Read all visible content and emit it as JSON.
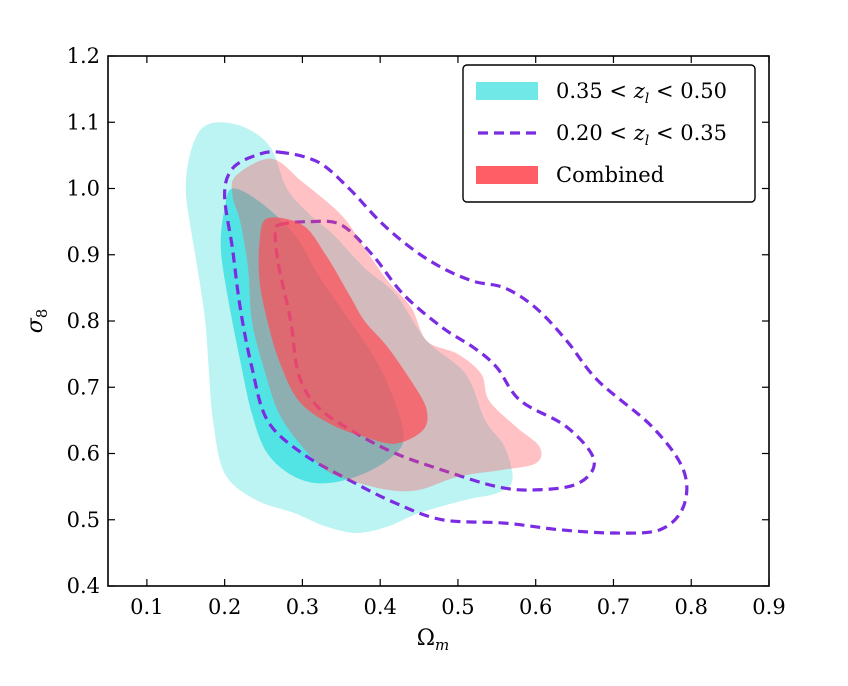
{
  "chart_data": {
    "type": "contour",
    "xlabel": "Ω",
    "xlabel_sub": "m",
    "ylabel": "σ",
    "ylabel_sub": "8",
    "xlim": [
      0.05,
      0.9
    ],
    "ylim": [
      0.4,
      1.2
    ],
    "xticks": [
      "0.1",
      "0.2",
      "0.3",
      "0.4",
      "0.5",
      "0.6",
      "0.7",
      "0.8",
      "0.9"
    ],
    "yticks": [
      "0.4",
      "0.5",
      "0.6",
      "0.7",
      "0.8",
      "0.9",
      "1.0",
      "1.1",
      "1.2"
    ],
    "legend_position": "top-right",
    "legend": [
      {
        "label_parts": [
          "0.35 < ",
          "z",
          "l",
          " < 0.50"
        ],
        "style": "filled",
        "color": "#40E0E0"
      },
      {
        "label_parts": [
          "0.20 < ",
          "z",
          "l",
          " < 0.35"
        ],
        "style": "dashed",
        "color": "#7B2BE2"
      },
      {
        "label_parts": [
          "Combined"
        ],
        "style": "filled",
        "color": "#FF4C55"
      }
    ],
    "series": [
      {
        "name": "0.35 < z_l < 0.50",
        "color": "#40E0E0",
        "style": "filled",
        "levels": [
          {
            "level": "outer",
            "opacity": 0.35,
            "points": [
              [
                0.195,
                1.1
              ],
              [
                0.23,
                1.09
              ],
              [
                0.26,
                1.06
              ],
              [
                0.28,
                1.0
              ],
              [
                0.31,
                0.96
              ],
              [
                0.34,
                0.93
              ],
              [
                0.38,
                0.88
              ],
              [
                0.42,
                0.84
              ],
              [
                0.46,
                0.77
              ],
              [
                0.51,
                0.72
              ],
              [
                0.535,
                0.65
              ],
              [
                0.56,
                0.61
              ],
              [
                0.57,
                0.56
              ],
              [
                0.55,
                0.54
              ],
              [
                0.51,
                0.53
              ],
              [
                0.45,
                0.51
              ],
              [
                0.41,
                0.49
              ],
              [
                0.37,
                0.48
              ],
              [
                0.33,
                0.49
              ],
              [
                0.29,
                0.51
              ],
              [
                0.24,
                0.53
              ],
              [
                0.2,
                0.57
              ],
              [
                0.185,
                0.65
              ],
              [
                0.18,
                0.72
              ],
              [
                0.175,
                0.8
              ],
              [
                0.165,
                0.88
              ],
              [
                0.155,
                0.95
              ],
              [
                0.15,
                1.0
              ],
              [
                0.155,
                1.05
              ],
              [
                0.17,
                1.09
              ]
            ]
          },
          {
            "level": "inner",
            "opacity": 0.85,
            "points": [
              [
                0.21,
                1.0
              ],
              [
                0.245,
                0.98
              ],
              [
                0.29,
                0.93
              ],
              [
                0.32,
                0.87
              ],
              [
                0.355,
                0.81
              ],
              [
                0.39,
                0.75
              ],
              [
                0.415,
                0.69
              ],
              [
                0.43,
                0.63
              ],
              [
                0.42,
                0.6
              ],
              [
                0.38,
                0.57
              ],
              [
                0.33,
                0.555
              ],
              [
                0.29,
                0.565
              ],
              [
                0.255,
                0.6
              ],
              [
                0.235,
                0.66
              ],
              [
                0.22,
                0.74
              ],
              [
                0.205,
                0.83
              ],
              [
                0.195,
                0.91
              ],
              [
                0.2,
                0.97
              ]
            ]
          }
        ]
      },
      {
        "name": "0.20 < z_l < 0.35",
        "color": "#7B2BE2",
        "style": "dashed",
        "levels": [
          {
            "level": "outer",
            "points": [
              [
                0.27,
                1.055
              ],
              [
                0.32,
                1.04
              ],
              [
                0.36,
                1.0
              ],
              [
                0.4,
                0.95
              ],
              [
                0.44,
                0.91
              ],
              [
                0.48,
                0.88
              ],
              [
                0.52,
                0.86
              ],
              [
                0.56,
                0.85
              ],
              [
                0.6,
                0.82
              ],
              [
                0.64,
                0.77
              ],
              [
                0.68,
                0.71
              ],
              [
                0.75,
                0.64
              ],
              [
                0.79,
                0.575
              ],
              [
                0.79,
                0.52
              ],
              [
                0.76,
                0.485
              ],
              [
                0.7,
                0.48
              ],
              [
                0.63,
                0.485
              ],
              [
                0.56,
                0.495
              ],
              [
                0.48,
                0.5
              ],
              [
                0.42,
                0.525
              ],
              [
                0.36,
                0.56
              ],
              [
                0.3,
                0.6
              ],
              [
                0.255,
                0.65
              ],
              [
                0.235,
                0.73
              ],
              [
                0.22,
                0.82
              ],
              [
                0.21,
                0.91
              ],
              [
                0.2,
                0.99
              ],
              [
                0.21,
                1.03
              ],
              [
                0.24,
                1.05
              ]
            ]
          },
          {
            "level": "inner",
            "points": [
              [
                0.27,
                0.945
              ],
              [
                0.31,
                0.95
              ],
              [
                0.35,
                0.945
              ],
              [
                0.39,
                0.9
              ],
              [
                0.43,
                0.84
              ],
              [
                0.48,
                0.79
              ],
              [
                0.52,
                0.76
              ],
              [
                0.55,
                0.73
              ],
              [
                0.58,
                0.68
              ],
              [
                0.64,
                0.64
              ],
              [
                0.675,
                0.59
              ],
              [
                0.655,
                0.555
              ],
              [
                0.6,
                0.545
              ],
              [
                0.55,
                0.55
              ],
              [
                0.48,
                0.575
              ],
              [
                0.42,
                0.6
              ],
              [
                0.37,
                0.63
              ],
              [
                0.32,
                0.67
              ],
              [
                0.295,
                0.72
              ],
              [
                0.285,
                0.8
              ],
              [
                0.27,
                0.88
              ],
              [
                0.265,
                0.93
              ]
            ]
          }
        ]
      },
      {
        "name": "Combined",
        "color": "#FF4C55",
        "style": "filled",
        "levels": [
          {
            "level": "outer",
            "opacity": 0.35,
            "points": [
              [
                0.215,
                1.02
              ],
              [
                0.26,
                1.045
              ],
              [
                0.3,
                1.01
              ],
              [
                0.35,
                0.96
              ],
              [
                0.38,
                0.91
              ],
              [
                0.41,
                0.86
              ],
              [
                0.44,
                0.82
              ],
              [
                0.46,
                0.77
              ],
              [
                0.5,
                0.75
              ],
              [
                0.53,
                0.72
              ],
              [
                0.54,
                0.68
              ],
              [
                0.575,
                0.64
              ],
              [
                0.605,
                0.61
              ],
              [
                0.6,
                0.585
              ],
              [
                0.555,
                0.575
              ],
              [
                0.5,
                0.565
              ],
              [
                0.45,
                0.545
              ],
              [
                0.41,
                0.545
              ],
              [
                0.36,
                0.56
              ],
              [
                0.33,
                0.575
              ],
              [
                0.3,
                0.61
              ],
              [
                0.27,
                0.66
              ],
              [
                0.25,
                0.73
              ],
              [
                0.235,
                0.8
              ],
              [
                0.23,
                0.88
              ],
              [
                0.22,
                0.95
              ],
              [
                0.21,
                0.99
              ]
            ]
          },
          {
            "level": "inner",
            "opacity": 0.7,
            "points": [
              [
                0.255,
                0.955
              ],
              [
                0.3,
                0.945
              ],
              [
                0.33,
                0.9
              ],
              [
                0.36,
                0.84
              ],
              [
                0.38,
                0.8
              ],
              [
                0.41,
                0.76
              ],
              [
                0.445,
                0.7
              ],
              [
                0.46,
                0.665
              ],
              [
                0.455,
                0.635
              ],
              [
                0.42,
                0.615
              ],
              [
                0.38,
                0.625
              ],
              [
                0.335,
                0.645
              ],
              [
                0.295,
                0.68
              ],
              [
                0.27,
                0.74
              ],
              [
                0.255,
                0.8
              ],
              [
                0.245,
                0.86
              ],
              [
                0.245,
                0.92
              ]
            ]
          }
        ]
      }
    ]
  }
}
